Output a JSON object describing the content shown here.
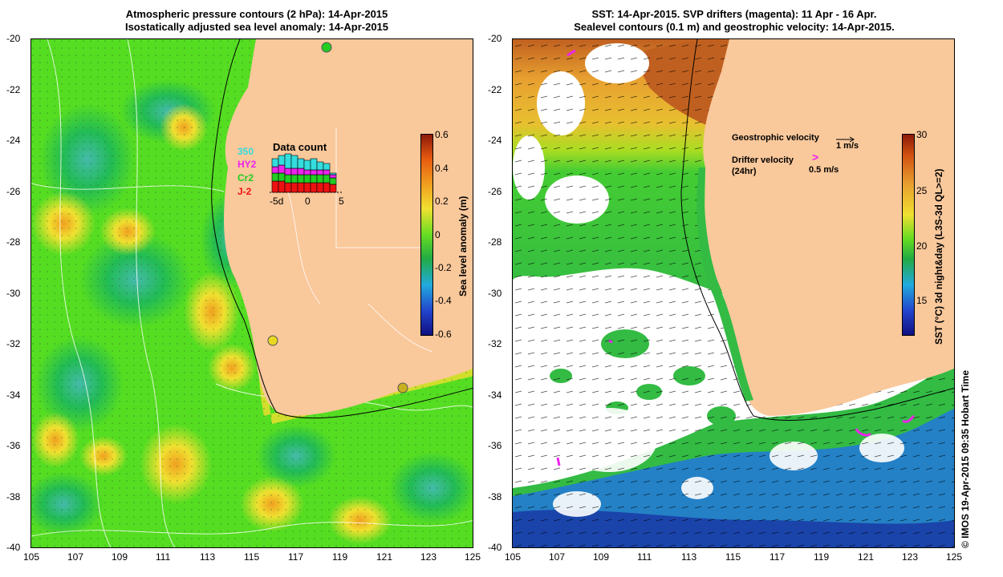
{
  "left": {
    "title_line1": "Atmospheric pressure contours (2 hPa): 14-Apr-2015",
    "title_line2": "Isostatically adjusted sea level anomaly: 14-Apr-2015",
    "colorbar": {
      "label": "Sea level anomaly (m)",
      "ticks": [
        "0.6",
        "0.4",
        "0.2",
        "0",
        "-0.2",
        "-0.4",
        "-0.6"
      ]
    },
    "data_count": {
      "title": "Data count",
      "legend": [
        {
          "label": "350",
          "color": "#33dddd"
        },
        {
          "label": "HY2",
          "color": "#ee22ee"
        },
        {
          "label": "Cr2",
          "color": "#22cc22"
        },
        {
          "label": "J-2",
          "color": "#ee1111"
        }
      ],
      "xticks": [
        "-5d",
        "0",
        "5"
      ]
    }
  },
  "right": {
    "title_line1": "SST: 14-Apr-2015. SVP drifters (magenta): 11 Apr - 16 Apr.",
    "title_line2": "Sealevel contours (0.1 m) and geostrophic velocity: 14-Apr-2015.",
    "colorbar": {
      "label": "SST (°C) 3d night&day (L3S-3d QL>=2)",
      "ticks": [
        "30",
        "25",
        "20",
        "15"
      ]
    },
    "legend": {
      "geo_label": "Geostrophic velocity",
      "geo_scale": "1 m/s",
      "drifter_label": "Drifter velocity",
      "drifter_sub": "(24hr)",
      "drifter_scale": "0.5 m/s"
    }
  },
  "axes": {
    "lat_ticks": [
      "-20",
      "-22",
      "-24",
      "-26",
      "-28",
      "-30",
      "-32",
      "-34",
      "-36",
      "-38",
      "-40"
    ],
    "lon_ticks": [
      "105",
      "107",
      "109",
      "111",
      "113",
      "115",
      "117",
      "119",
      "121",
      "123",
      "125"
    ]
  },
  "credit": "© IMOS 19-Apr-2015 09:35 Hobart Time",
  "colors": {
    "land": "#f9c89b",
    "sla_green": "#55dd22",
    "sst_orange": "#e8a530",
    "sst_blue": "#2277dd"
  }
}
